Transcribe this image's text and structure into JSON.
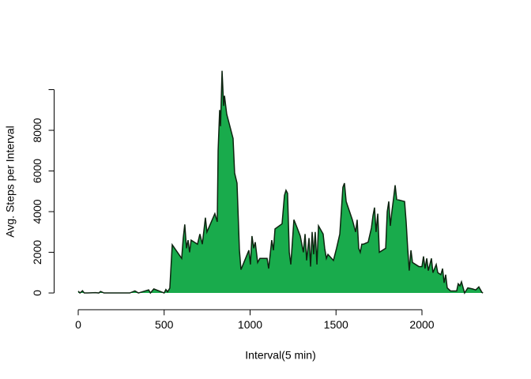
{
  "chart_data": {
    "type": "area",
    "x_label": "Interval(5 min)",
    "y_label": "Avg. Steps per Interval",
    "series": [
      {
        "color": "#19ab4c",
        "line_color": "#0d2410",
        "x": [
          0,
          10,
          25,
          35,
          55,
          100,
          120,
          130,
          150,
          300,
          330,
          350,
          410,
          420,
          440,
          500,
          510,
          520,
          533,
          547,
          602,
          611,
          620,
          630,
          639,
          648,
          657,
          694,
          708,
          722,
          740,
          749,
          795,
          809,
          814,
          823,
          828,
          837,
          846,
          851,
          864,
          901,
          910,
          924,
          938,
          947,
          993,
          1002,
          1011,
          1021,
          1030,
          1044,
          1057,
          1099,
          1108,
          1126,
          1136,
          1145,
          1186,
          1200,
          1209,
          1218,
          1228,
          1237,
          1255,
          1274,
          1292,
          1310,
          1320,
          1329,
          1343,
          1352,
          1361,
          1370,
          1379,
          1389,
          1398,
          1425,
          1434,
          1444,
          1453,
          1485,
          1503,
          1522,
          1540,
          1549,
          1559,
          1595,
          1614,
          1623,
          1632,
          1641,
          1650,
          1660,
          1687,
          1706,
          1715,
          1724,
          1733,
          1743,
          1752,
          1789,
          1798,
          1807,
          1816,
          1825,
          1834,
          1844,
          1853,
          1899,
          1908,
          1917,
          1926,
          1936,
          1945,
          1982,
          2000,
          2009,
          2018,
          2028,
          2037,
          2055,
          2064,
          2083,
          2092,
          2110,
          2120,
          2129,
          2138,
          2147,
          2166,
          2202,
          2211,
          2221,
          2230,
          2248,
          2267,
          2294,
          2313,
          2331,
          2349,
          2355
        ],
        "values": [
          91,
          0,
          110,
          0,
          0,
          18,
          0,
          75,
          0,
          0,
          100,
          0,
          150,
          0,
          200,
          0,
          170,
          60,
          240,
          2370,
          1700,
          2700,
          3370,
          2200,
          2600,
          2000,
          2600,
          2400,
          2900,
          2400,
          3700,
          3000,
          3900,
          3500,
          7000,
          9000,
          8200,
          10927,
          9200,
          9700,
          8800,
          7600,
          5900,
          5400,
          2100,
          1150,
          2100,
          1400,
          2800,
          2200,
          2500,
          1500,
          1700,
          1700,
          1200,
          2600,
          2100,
          3150,
          3400,
          4800,
          5050,
          4900,
          2000,
          1400,
          3600,
          3200,
          2800,
          2000,
          2900,
          1600,
          2700,
          1300,
          3000,
          1900,
          3000,
          1400,
          3300,
          2900,
          2200,
          1700,
          1900,
          1600,
          2200,
          2900,
          5200,
          5400,
          4500,
          3600,
          3000,
          3600,
          2200,
          2000,
          2400,
          2400,
          2500,
          3200,
          3800,
          4200,
          3000,
          3900,
          2000,
          2200,
          4000,
          4500,
          3300,
          4000,
          4600,
          5300,
          4600,
          4500,
          3500,
          2200,
          1100,
          2100,
          1500,
          1300,
          1300,
          1800,
          1200,
          1700,
          1100,
          1700,
          1000,
          1400,
          1000,
          900,
          1200,
          500,
          900,
          250,
          100,
          100,
          450,
          350,
          550,
          0,
          250,
          200,
          150,
          300,
          30,
          0
        ]
      }
    ],
    "xlim": [
      -94.2,
      2449.2
    ],
    "xticks": [
      0,
      500,
      1000,
      1500,
      2000
    ],
    "ylim": [
      -437,
      11364
    ],
    "yticks": [
      0,
      2000,
      4000,
      6000,
      8000
    ],
    "extra_yticks": [
      10000
    ]
  }
}
